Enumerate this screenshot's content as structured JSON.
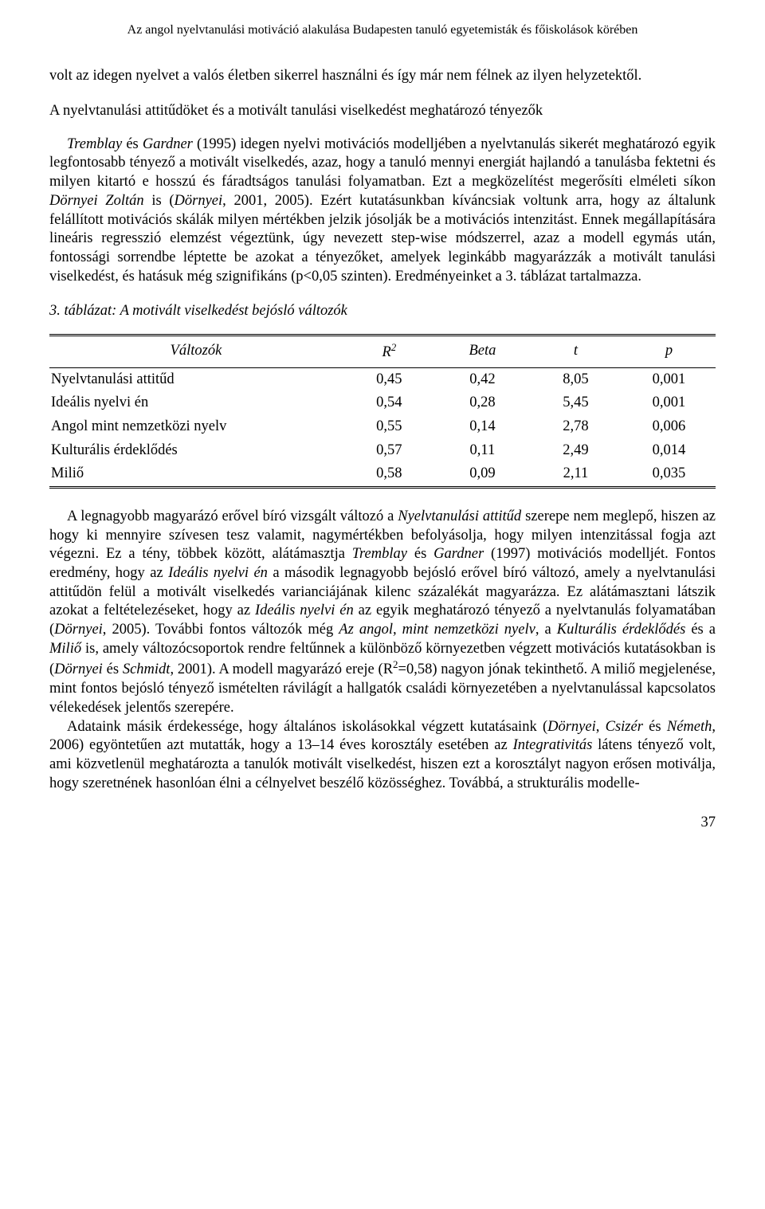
{
  "running_head": "Az angol nyelvtanulási motiváció alakulása Budapesten tanuló egyetemisták és főiskolások körében",
  "para1": "volt az idegen nyelvet a valós életben sikerrel használni és így már nem félnek az ilyen helyzetektől.",
  "section_heading": "A nyelvtanulási attitűdöket és a motivált tanulási viselkedést meghatározó tényezők",
  "para2_a": "Tremblay",
  "para2_b": " és ",
  "para2_c": "Gardner",
  "para2_d": " (1995) idegen nyelvi motivációs modelljében a nyelvtanulás sikerét meghatározó egyik legfontosabb tényező a motivált viselkedés, azaz, hogy a tanuló mennyi energiát hajlandó a tanulásba fektetni és milyen kitartó e hosszú és fáradtságos tanulási folyamatban. Ezt a megközelítést megerősíti elméleti síkon ",
  "para2_e": "Dörnyei Zoltán",
  "para2_f": " is (",
  "para2_g": "Dörnyei",
  "para2_h": ", 2001, 2005). Ezért kutatásunkban kíváncsiak voltunk arra, hogy az általunk felállított motivációs skálák milyen mértékben jelzik jósolják be a motivációs intenzitást. Ennek megállapítására lineáris regresszió elemzést végeztünk, úgy nevezett step-wise módszerrel, azaz a modell egymás után, fontossági sorrendbe léptette be azokat a tényezőket, amelyek leginkább magyarázzák a motivált tanulási viselkedést, és hatásuk még szignifikáns (p<0,05 szinten). Eredményeinket a 3. táblázat tartalmazza.",
  "table_caption": "3. táblázat: A motivált viselkedést bejósló változók",
  "table": {
    "columns": [
      "Változók",
      "R²",
      "Beta",
      "t",
      "p"
    ],
    "col0_header_prefix": "Változók",
    "col1_header_prefix": "R",
    "col1_header_sup": "2",
    "rows": [
      [
        "Nyelvtanulási attitűd",
        "0,45",
        "0,42",
        "8,05",
        "0,001"
      ],
      [
        "Ideális nyelvi én",
        "0,54",
        "0,28",
        "5,45",
        "0,001"
      ],
      [
        "Angol mint nemzetközi nyelv",
        "0,55",
        "0,14",
        "2,78",
        "0,006"
      ],
      [
        "Kulturális érdeklődés",
        "0,57",
        "0,11",
        "2,49",
        "0,014"
      ],
      [
        "Miliő",
        "0,58",
        "0,09",
        "2,11",
        "0,035"
      ]
    ],
    "col_widths": [
      "44%",
      "14%",
      "14%",
      "14%",
      "14%"
    ]
  },
  "para3_parts": [
    {
      "t": "A legnagyobb magyarázó erővel bíró vizsgált változó a ",
      "i": false
    },
    {
      "t": "Nyelvtanulási attitűd",
      "i": true
    },
    {
      "t": " szerepe nem meglepő, hiszen az hogy ki mennyire szívesen tesz valamit, nagymértékben befolyásolja, hogy milyen intenzitással fogja azt végezni. Ez a tény, többek között, alátámasztja ",
      "i": false
    },
    {
      "t": "Tremblay",
      "i": true
    },
    {
      "t": " és ",
      "i": false
    },
    {
      "t": "Gardner",
      "i": true
    },
    {
      "t": " (1997) motivációs modelljét. Fontos eredmény, hogy az ",
      "i": false
    },
    {
      "t": "Ideális nyelvi én",
      "i": true
    },
    {
      "t": " a második legnagyobb bejósló erővel bíró változó, amely a nyelvtanulási attitűdön felül a motivált viselkedés varianciájának kilenc százalékát magyarázza. Ez alátámasztani látszik azokat a feltételezéseket, hogy az ",
      "i": false
    },
    {
      "t": "Ideális nyelvi én",
      "i": true
    },
    {
      "t": " az egyik meghatározó tényező a nyelvtanulás folyamatában (",
      "i": false
    },
    {
      "t": "Dörnyei",
      "i": true
    },
    {
      "t": ", 2005). További fontos változók még ",
      "i": false
    },
    {
      "t": "Az angol, mint nemzetközi nyelv",
      "i": true
    },
    {
      "t": ", a ",
      "i": false
    },
    {
      "t": "Kulturális érdeklődés",
      "i": true
    },
    {
      "t": " és a ",
      "i": false
    },
    {
      "t": "Miliő",
      "i": true
    },
    {
      "t": " is, amely változócsoportok rendre feltűnnek a különböző környezetben végzett motivációs kutatásokban is (",
      "i": false
    },
    {
      "t": "Dörnyei",
      "i": true
    },
    {
      "t": " és ",
      "i": false
    },
    {
      "t": "Schmidt",
      "i": true
    },
    {
      "t": ", 2001). A modell magyarázó ereje (R",
      "i": false
    },
    {
      "t": "2",
      "sup": true
    },
    {
      "t": "=0,58) nagyon jónak tekinthető. A miliő megjelenése, mint fontos bejósló tényező ismételten rávilágít a hallgatók családi környezetében a nyelvtanulással kapcsolatos vélekedések jelentős szerepére.",
      "i": false
    }
  ],
  "para4_parts": [
    {
      "t": "Adataink másik érdekessége, hogy általános iskolásokkal végzett kutatásaink (",
      "i": false
    },
    {
      "t": "Dörnyei",
      "i": true
    },
    {
      "t": ", ",
      "i": false
    },
    {
      "t": "Csizér",
      "i": true
    },
    {
      "t": " és ",
      "i": false
    },
    {
      "t": "Németh",
      "i": true
    },
    {
      "t": ", 2006) egyöntetűen azt mutatták, hogy a 13–14 éves korosztály esetében az ",
      "i": false
    },
    {
      "t": "Integrativitás",
      "i": true
    },
    {
      "t": " látens tényező volt, ami közvetlenül meghatározta a tanulók motivált viselkedést, hiszen ezt a korosztályt nagyon erősen motiválja, hogy szeretnének hasonlóan élni a célnyelvet beszélő közösséghez. Továbbá, a strukturális modelle-",
      "i": false
    }
  ],
  "page_number": "37"
}
